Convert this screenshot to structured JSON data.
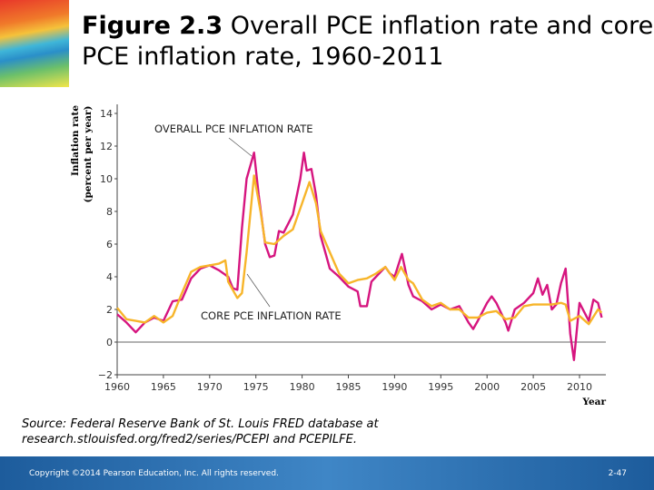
{
  "slide": {
    "title_bold": "Figure 2.3",
    "title_rest": " Overall PCE inflation rate and core PCE inflation rate, 1960-2011",
    "source_line1": "Source: Federal Reserve Bank of St. Louis FRED database at",
    "source_line2": "research.stlouisfed.org/fred2/series/PCEPI and PCEPILFE.",
    "copyright": "Copyright ©2014 Pearson Education, Inc. All rights reserved.",
    "page_number": "2-47"
  },
  "chart_data": {
    "type": "line",
    "title": "",
    "xlabel": "Year",
    "ylabel": "Inflation rate (percent per year)",
    "xlim": [
      1960,
      2012.5
    ],
    "ylim": [
      -2,
      14
    ],
    "xticks": [
      1960,
      1965,
      1970,
      1975,
      1980,
      1985,
      1990,
      1995,
      2000,
      2005,
      2010
    ],
    "yticks": [
      -2,
      0,
      2,
      4,
      6,
      8,
      10,
      12,
      14
    ],
    "grid": false,
    "colors": {
      "overall": "#d6157f",
      "core": "#f7b52a"
    },
    "series": [
      {
        "name": "OVERALL PCE INFLATION RATE",
        "x": [
          1960,
          1961,
          1962,
          1963,
          1964,
          1965,
          1966,
          1967,
          1968,
          1969,
          1970,
          1971,
          1972,
          1972.5,
          1973,
          1973.5,
          1974,
          1974.8,
          1975.3,
          1976,
          1976.5,
          1977,
          1977.5,
          1978,
          1979,
          1979.8,
          1980.2,
          1980.5,
          1981,
          1981.5,
          1982,
          1982.5,
          1983,
          1984,
          1985,
          1986,
          1986.3,
          1987,
          1987.5,
          1988,
          1989,
          1989.5,
          1990,
          1990.8,
          1991.5,
          1992,
          1993,
          1994,
          1995,
          1996,
          1997,
          1998,
          1998.5,
          1999,
          2000,
          2000.5,
          2001,
          2002,
          2002.3,
          2003,
          2004,
          2005,
          2005.5,
          2006,
          2006.5,
          2007,
          2007.5,
          2008,
          2008.5,
          2009,
          2009.4,
          2009.8,
          2010,
          2011,
          2011.5,
          2012,
          2012.4
        ],
        "y": [
          1.7,
          1.2,
          0.6,
          1.2,
          1.5,
          1.3,
          2.5,
          2.6,
          3.9,
          4.5,
          4.7,
          4.4,
          4.0,
          3.3,
          3.2,
          7.0,
          10.0,
          11.6,
          9.0,
          6.0,
          5.2,
          5.3,
          6.8,
          6.7,
          7.8,
          10.0,
          11.6,
          10.5,
          10.6,
          9.0,
          6.5,
          5.5,
          4.5,
          4.0,
          3.4,
          3.1,
          2.2,
          2.2,
          3.7,
          4.0,
          4.6,
          4.2,
          4.0,
          5.4,
          3.5,
          2.8,
          2.5,
          2.0,
          2.3,
          2.0,
          2.2,
          1.2,
          0.8,
          1.3,
          2.4,
          2.8,
          2.4,
          1.2,
          0.7,
          2.0,
          2.4,
          3.0,
          3.9,
          2.9,
          3.5,
          2.0,
          2.3,
          3.6,
          4.5,
          0.5,
          -1.1,
          1.3,
          2.4,
          1.3,
          2.6,
          2.4,
          1.5
        ]
      },
      {
        "name": "CORE PCE INFLATION RATE",
        "x": [
          1960,
          1961,
          1962,
          1963,
          1964,
          1965,
          1966,
          1967,
          1968,
          1969,
          1970,
          1971,
          1971.7,
          1972,
          1973,
          1973.5,
          1974,
          1974.8,
          1975.5,
          1976,
          1977,
          1978,
          1979,
          1980,
          1980.8,
          1981.5,
          1982,
          1983,
          1984,
          1985,
          1986,
          1987,
          1988,
          1989,
          1990,
          1990.7,
          1991.5,
          1992,
          1993,
          1994,
          1995,
          1996,
          1997,
          1998,
          1999,
          2000,
          2001,
          2002,
          2003,
          2004,
          2005,
          2006,
          2007,
          2008,
          2008.5,
          2009,
          2010,
          2011,
          2012,
          2012.4
        ],
        "y": [
          2.1,
          1.4,
          1.3,
          1.2,
          1.6,
          1.2,
          1.6,
          3.0,
          4.3,
          4.6,
          4.7,
          4.8,
          5.0,
          3.7,
          2.7,
          3.0,
          5.5,
          10.2,
          8.0,
          6.1,
          6.0,
          6.5,
          6.9,
          8.5,
          9.8,
          8.5,
          6.8,
          5.5,
          4.2,
          3.6,
          3.8,
          3.9,
          4.2,
          4.6,
          3.8,
          4.6,
          3.8,
          3.6,
          2.6,
          2.2,
          2.4,
          2.0,
          2.0,
          1.5,
          1.5,
          1.8,
          1.9,
          1.4,
          1.5,
          2.2,
          2.3,
          2.3,
          2.3,
          2.4,
          2.3,
          1.3,
          1.6,
          1.1,
          2.0,
          1.8
        ]
      }
    ],
    "annotations": [
      "OVERALL PCE INFLATION RATE",
      "CORE PCE INFLATION RATE"
    ]
  }
}
